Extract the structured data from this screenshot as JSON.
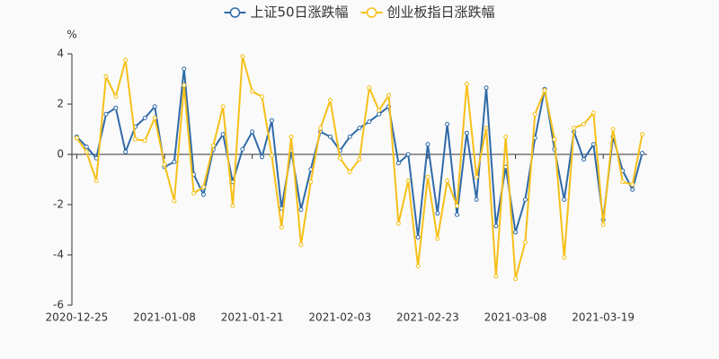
{
  "chart_data": {
    "type": "line",
    "y_label": "%",
    "categories": [
      "2020-12-25",
      null,
      null,
      null,
      null,
      null,
      null,
      null,
      null,
      "2021-01-08",
      null,
      null,
      null,
      null,
      null,
      null,
      null,
      null,
      "2021-01-21",
      null,
      null,
      null,
      null,
      null,
      null,
      null,
      null,
      "2021-02-03",
      null,
      null,
      null,
      null,
      null,
      null,
      null,
      null,
      "2021-02-23",
      null,
      null,
      null,
      null,
      null,
      null,
      null,
      null,
      "2021-03-08",
      null,
      null,
      null,
      null,
      null,
      null,
      null,
      null,
      "2021-03-19",
      null,
      null,
      null,
      null
    ],
    "series": [
      {
        "name": "上证50日涨跌幅",
        "color": "#2f6aa8",
        "values": [
          0.7,
          0.3,
          -0.15,
          1.6,
          1.85,
          0.1,
          1.1,
          1.45,
          1.9,
          -0.5,
          -0.3,
          3.4,
          -0.8,
          -1.6,
          0.2,
          0.8,
          -1.1,
          0.2,
          0.9,
          -0.1,
          1.35,
          -2.15,
          0.15,
          -2.2,
          -0.6,
          0.9,
          0.7,
          0.15,
          0.7,
          1.05,
          1.3,
          1.6,
          1.9,
          -0.35,
          0.0,
          -3.3,
          0.4,
          -2.35,
          1.2,
          -2.4,
          0.85,
          -1.8,
          2.65,
          -2.85,
          -0.5,
          -3.1,
          -1.8,
          0.65,
          2.6,
          0.2,
          -1.8,
          0.9,
          -0.2,
          0.4,
          -2.6,
          0.7,
          -0.65,
          -1.4,
          0.05
        ]
      },
      {
        "name": "创业板指日涨跌幅",
        "color": "#f6c018",
        "values": [
          0.65,
          0.1,
          -1.05,
          3.1,
          2.3,
          3.75,
          0.6,
          0.55,
          1.45,
          -0.4,
          -1.85,
          2.75,
          -1.55,
          -1.3,
          0.35,
          1.9,
          -2.05,
          3.9,
          2.5,
          2.3,
          -0.05,
          -2.9,
          0.7,
          -3.6,
          -1.1,
          1.05,
          2.15,
          -0.15,
          -0.7,
          -0.2,
          2.65,
          1.75,
          2.35,
          -2.75,
          -1.05,
          -4.45,
          -0.9,
          -3.35,
          -1.05,
          -2.05,
          2.8,
          -0.9,
          1.05,
          -4.85,
          0.7,
          -4.95,
          -3.5,
          1.6,
          2.55,
          0.6,
          -4.1,
          1.05,
          1.2,
          1.65,
          -2.8,
          1.0,
          -1.1,
          -1.2,
          0.8
        ]
      }
    ],
    "ylim": [
      -6,
      4
    ],
    "yticks": [
      -6,
      -4,
      -2,
      0,
      2,
      4
    ],
    "grid": false,
    "legend": "top"
  }
}
